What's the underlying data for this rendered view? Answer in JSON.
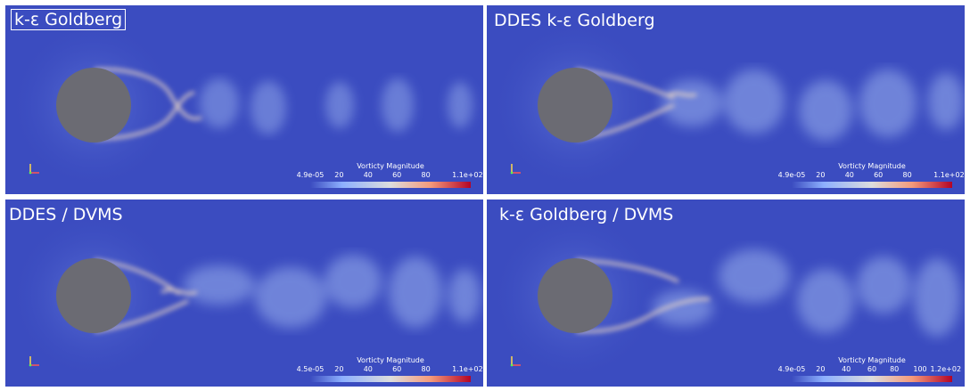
{
  "panels": [
    {
      "title": "k-ε Goldberg",
      "colorbar": {
        "title": "Vorticty Magnitude",
        "ticks": [
          "4.9e-05",
          "20",
          "40",
          "60",
          "80",
          "1.1e+02"
        ]
      }
    },
    {
      "title": "DDES k-ε Goldberg",
      "colorbar": {
        "title": "Vorticty Magnitude",
        "ticks": [
          "4.9e-05",
          "20",
          "40",
          "60",
          "80",
          "1.1e+02"
        ]
      }
    },
    {
      "title": "DDES / DVMS",
      "colorbar": {
        "title": "Vorticty Magnitude",
        "ticks": [
          "4.5e-05",
          "20",
          "40",
          "60",
          "80",
          "1.1e+02"
        ]
      }
    },
    {
      "title": "k-ε Goldberg / DVMS",
      "colorbar": {
        "title": "Vorticty Magnitude",
        "ticks": [
          "4.9e-05",
          "20",
          "40",
          "60",
          "80",
          "100",
          "1.2e+02"
        ]
      }
    }
  ],
  "colors": {
    "background": "#3b4cc0",
    "cylinder": "#6b6b73",
    "shear_layer": "#e8d4c4",
    "wake": "#9bb0e6"
  }
}
